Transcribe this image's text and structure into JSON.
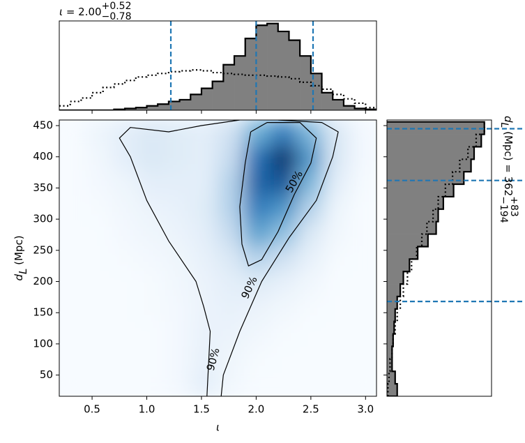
{
  "chart_data": [
    {
      "type": "heatmap",
      "xlabel": "ι",
      "ylabel_var": "d",
      "ylabel_sub": "L",
      "ylabel_text": " (Mpc)",
      "xlim": [
        0.2,
        3.1
      ],
      "ylim": [
        16,
        459
      ],
      "xticks": [
        0.5,
        {
          "value": 1,
          "label": "1.0"
        },
        1.5,
        {
          "value": 2,
          "label": "2.0"
        },
        2.5,
        {
          "value": 3,
          "label": "3.0"
        }
      ],
      "yticks": [
        50,
        100,
        150,
        200,
        250,
        300,
        350,
        400,
        450
      ],
      "colormap": [
        "#f7fbff",
        "#c6dbef",
        "#6baed6",
        "#2171b5",
        "#08306b"
      ],
      "z": [
        [
          0,
          0,
          0,
          0,
          0.02,
          0.1,
          0.03,
          0,
          0,
          0,
          0,
          0
        ],
        [
          0,
          0,
          0,
          0,
          0.02,
          0.08,
          0.04,
          0.01,
          0,
          0,
          0,
          0
        ],
        [
          0,
          0,
          0,
          0,
          0.02,
          0.07,
          0.06,
          0.03,
          0.01,
          0,
          0,
          0
        ],
        [
          0,
          0,
          0,
          0.01,
          0.02,
          0.06,
          0.08,
          0.06,
          0.03,
          0.01,
          0,
          0
        ],
        [
          0,
          0,
          0,
          0.01,
          0.03,
          0.06,
          0.1,
          0.12,
          0.08,
          0.03,
          0,
          0
        ],
        [
          0,
          0,
          0.01,
          0.02,
          0.04,
          0.08,
          0.15,
          0.3,
          0.2,
          0.08,
          0.01,
          0
        ],
        [
          0,
          0,
          0.02,
          0.04,
          0.06,
          0.1,
          0.25,
          0.55,
          0.4,
          0.15,
          0.03,
          0
        ],
        [
          0,
          0.01,
          0.03,
          0.06,
          0.08,
          0.12,
          0.3,
          0.7,
          0.6,
          0.3,
          0.05,
          0
        ],
        [
          0,
          0.02,
          0.05,
          0.1,
          0.1,
          0.1,
          0.3,
          0.8,
          0.85,
          0.45,
          0.1,
          0.01
        ],
        [
          0,
          0.03,
          0.1,
          0.15,
          0.12,
          0.1,
          0.25,
          0.75,
          1.0,
          0.6,
          0.15,
          0.02
        ],
        [
          0,
          0.05,
          0.1,
          0.15,
          0.12,
          0.1,
          0.2,
          0.5,
          0.7,
          0.45,
          0.15,
          0.02
        ]
      ],
      "contours": [
        {
          "color": "#000000",
          "x": [
            1.55,
            1.58,
            1.52,
            1.45,
            1.2,
            1.0,
            0.85,
            0.75,
            0.85,
            1.2,
            1.5,
            1.85,
            null,
            2.2,
            2.6,
            2.75,
            2.7,
            2.55,
            2.3,
            2.05,
            1.85,
            1.7,
            1.68
          ],
          "values": [
            16,
            120,
            160,
            200,
            265,
            330,
            400,
            430,
            447,
            440,
            450,
            459,
            null,
            459,
            455,
            440,
            400,
            330,
            270,
            200,
            120,
            50,
            16
          ]
        },
        {
          "color": "#000000",
          "x": [
            1.95,
            2.1,
            2.4,
            2.55,
            2.5,
            2.35,
            2.2,
            2.05,
            1.93,
            1.87,
            1.85,
            1.9,
            1.95
          ],
          "values": [
            440,
            455,
            455,
            430,
            390,
            340,
            280,
            235,
            225,
            260,
            320,
            390,
            440
          ]
        }
      ],
      "annotations": [
        {
          "text": "50%",
          "x": 2.35,
          "y": 360,
          "angle": -60
        },
        {
          "text": "90%",
          "x": 1.94,
          "y": 190,
          "angle": -65
        },
        {
          "text": "90%",
          "x": 1.61,
          "y": 75,
          "angle": -75
        }
      ]
    },
    {
      "type": "histogram",
      "orientation": "vertical",
      "title_var": "ι",
      "title_text": " = 2.00",
      "title_sup": "+0.52",
      "title_sub": "−0.78",
      "xlim": [
        0.2,
        3.1
      ],
      "ylim": [
        0,
        1.02
      ],
      "bins": [
        0.2,
        0.3,
        0.4,
        0.5,
        0.6,
        0.7,
        0.8,
        0.9,
        1.0,
        1.1,
        1.2,
        1.3,
        1.4,
        1.5,
        1.6,
        1.7,
        1.8,
        1.9,
        2.0,
        2.1,
        2.2,
        2.3,
        2.4,
        2.5,
        2.6,
        2.7,
        2.8,
        2.9,
        3.0,
        3.1
      ],
      "series": [
        {
          "style": "filled",
          "color": "#808080",
          "values": [
            0,
            0,
            0,
            0,
            0,
            0.01,
            0.02,
            0.03,
            0.05,
            0.07,
            0.1,
            0.12,
            0.18,
            0.25,
            0.33,
            0.52,
            0.62,
            0.82,
            0.97,
            0.99,
            0.9,
            0.8,
            0.62,
            0.42,
            0.2,
            0.12,
            0.05,
            0.02,
            0.01
          ]
        },
        {
          "style": "dotted",
          "color": "#000000",
          "values": [
            0.05,
            0.1,
            0.14,
            0.2,
            0.26,
            0.3,
            0.34,
            0.38,
            0.4,
            0.42,
            0.44,
            0.45,
            0.46,
            0.45,
            0.43,
            0.42,
            0.41,
            0.4,
            0.4,
            0.39,
            0.38,
            0.36,
            0.32,
            0.28,
            0.24,
            0.18,
            0.13,
            0.08,
            0.03
          ]
        }
      ],
      "quantiles": [
        1.22,
        2.0,
        2.52
      ],
      "quantile_color": "#1f77b4"
    },
    {
      "type": "histogram",
      "orientation": "horizontal",
      "title_var": "d",
      "title_var_sub": "L",
      "title_text": " (Mpc) = 362",
      "title_sup": "+83",
      "title_sub": "−194",
      "xlim": [
        0,
        1.02
      ],
      "ylim": [
        16,
        459
      ],
      "bins": [
        16,
        36,
        56,
        76,
        96,
        116,
        136,
        156,
        176,
        196,
        216,
        236,
        256,
        276,
        296,
        316,
        336,
        356,
        376,
        396,
        416,
        436,
        456
      ],
      "series": [
        {
          "style": "filled",
          "color": "#808080",
          "values": [
            0.1,
            0.08,
            0.05,
            0.05,
            0.06,
            0.07,
            0.08,
            0.1,
            0.13,
            0.16,
            0.22,
            0.3,
            0.4,
            0.48,
            0.5,
            0.55,
            0.65,
            0.75,
            0.82,
            0.85,
            0.92,
            0.95
          ]
        },
        {
          "style": "dotted",
          "color": "#000000",
          "values": [
            0.01,
            0.02,
            0.03,
            0.05,
            0.06,
            0.08,
            0.1,
            0.13,
            0.16,
            0.2,
            0.24,
            0.29,
            0.34,
            0.39,
            0.45,
            0.5,
            0.57,
            0.64,
            0.71,
            0.79,
            0.87,
            0.95
          ]
        }
      ],
      "quantiles": [
        168,
        362,
        445
      ],
      "quantile_color": "#1f77b4"
    }
  ]
}
